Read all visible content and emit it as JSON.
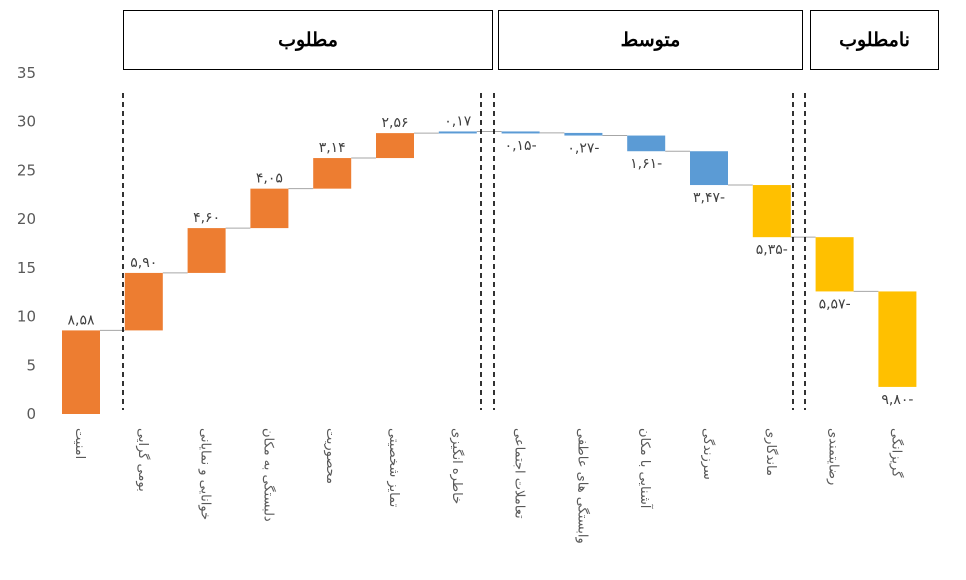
{
  "groups": [
    {
      "label": "مطلوب"
    },
    {
      "label": "متوسط"
    },
    {
      "label": "نامطلوب"
    }
  ],
  "chart_data": {
    "type": "waterfall",
    "ylim": [
      0,
      35
    ],
    "yticks": [
      0,
      5,
      10,
      15,
      20,
      25,
      30,
      35
    ],
    "ytick_labels": [
      "0",
      "5",
      "10",
      "15",
      "20",
      "25",
      "30",
      "35"
    ],
    "grid": false,
    "colors": {
      "increase": "#ED7D31",
      "decrease": "#5B9BD5",
      "total": "#FFC000",
      "connector": "#A6A6A6",
      "divider": "#000000"
    },
    "categories": [
      "امنیت",
      "بومی گرایی",
      "خوانایی و نمایانی",
      "دلبستگی به مکان",
      "محصوریت",
      "تمایز شخصیتی",
      "خاطره انگیزی",
      "تعاملات اجتماعی",
      "وابستگی های عاطفی",
      "آشنایی با مکان",
      "سرزندگی",
      "ماندگاری",
      "رضایتمندی",
      "گریزانگی"
    ],
    "values": [
      8.58,
      5.9,
      4.6,
      4.05,
      3.14,
      2.56,
      0.17,
      -0.15,
      -0.27,
      -1.61,
      -3.47,
      -5.35,
      -5.57,
      -9.8
    ],
    "start": [
      0,
      8.58,
      14.48,
      19.08,
      23.13,
      26.27,
      28.83,
      29.0,
      28.85,
      28.58,
      26.97,
      23.5,
      18.15,
      12.58
    ],
    "data_labels": [
      "۸,۵۸",
      "۵,۹۰",
      "۴,۶۰",
      "۴,۰۵",
      "۳,۱۴",
      "۲,۵۶",
      "۰,۱۷",
      "۰,۱۵-",
      "۰,۲۷-",
      "۱,۶۱-",
      "۳,۴۷-",
      "۵,۳۵-",
      "۵,۵۷-",
      "۹,۸۰-"
    ],
    "bar_colors": [
      "#ED7D31",
      "#ED7D31",
      "#ED7D31",
      "#ED7D31",
      "#ED7D31",
      "#ED7D31",
      "#5B9BD5",
      "#5B9BD5",
      "#5B9BD5",
      "#5B9BD5",
      "#5B9BD5",
      "#FFC000",
      "#FFC000",
      "#FFC000"
    ]
  }
}
